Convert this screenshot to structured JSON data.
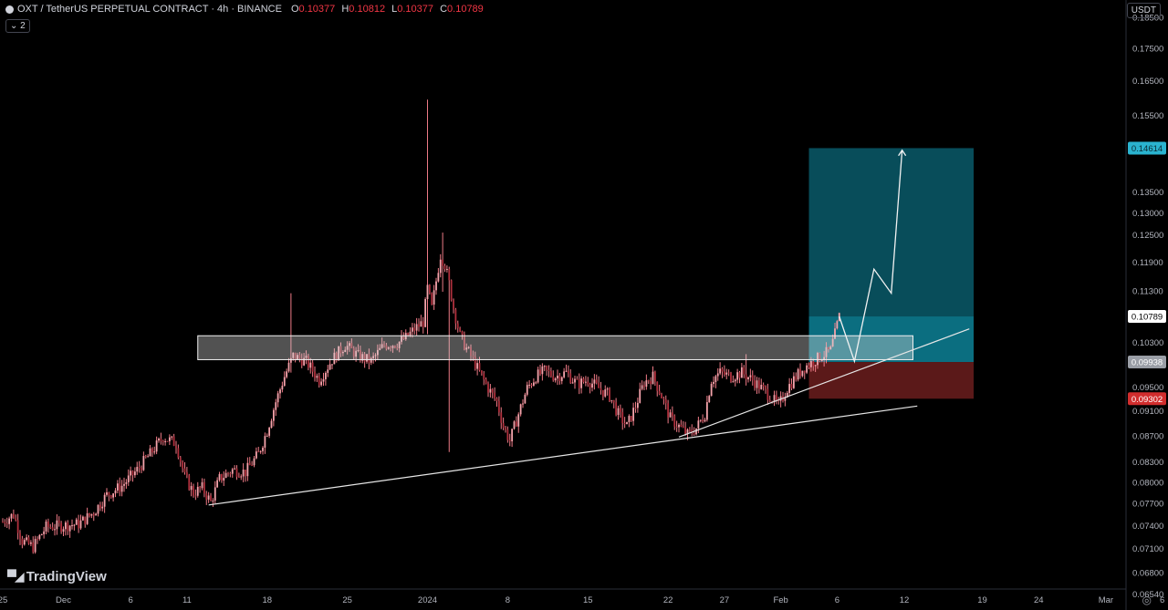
{
  "header": {
    "symbol": "OXT / TetherUS PERPETUAL CONTRACT · 4h · BINANCE",
    "open_label": "O",
    "open": "0.10377",
    "high_label": "H",
    "high": "0.10812",
    "low_label": "L",
    "low": "0.10377",
    "close_label": "C",
    "close": "0.10789",
    "indicator_count": "2",
    "currency": "USDT"
  },
  "brand": "TradingView",
  "colors": {
    "background": "#000000",
    "candle": "#ee7a86",
    "candle_dark": "#b0303d",
    "profit_zone": "#0b6e80",
    "loss_zone": "#6b1d1d",
    "zone_box": "#d8d8d8",
    "axis_text": "#b2b5be",
    "label_target": "#2ab3cf",
    "label_stop": "#d12d2d",
    "label_price": "#ffffff",
    "label_entry": "#9a9ea6"
  },
  "chart_data": {
    "type": "candlestick",
    "y_scale": "log",
    "ylim": [
      0.0645,
      0.189
    ],
    "y_ticks": [
      "0.18500",
      "0.17500",
      "0.16500",
      "0.15500",
      "0.13500",
      "0.13000",
      "0.12500",
      "0.11900",
      "0.11300",
      "0.10300",
      "0.09500",
      "0.09100",
      "0.08700",
      "0.08300",
      "0.08000",
      "0.07700",
      "0.07400",
      "0.07100",
      "0.06800",
      "0.06540"
    ],
    "x_ticks": [
      {
        "label": "25",
        "idx": 0
      },
      {
        "label": "Dec",
        "idx": 28
      },
      {
        "label": "6",
        "idx": 59
      },
      {
        "label": "11",
        "idx": 85
      },
      {
        "label": "18",
        "idx": 122
      },
      {
        "label": "25",
        "idx": 159
      },
      {
        "label": "2024",
        "idx": 196
      },
      {
        "label": "8",
        "idx": 233
      },
      {
        "label": "15",
        "idx": 270
      },
      {
        "label": "22",
        "idx": 307
      },
      {
        "label": "27",
        "idx": 333
      },
      {
        "label": "Feb",
        "idx": 359
      },
      {
        "label": "6",
        "idx": 385
      },
      {
        "label": "12",
        "idx": 416
      },
      {
        "label": "19",
        "idx": 452
      },
      {
        "label": "24",
        "idx": 478
      },
      {
        "label": "Mar",
        "idx": 509
      },
      {
        "label": "6",
        "idx": 535
      }
    ],
    "price_labels": [
      {
        "label": "0.14614",
        "value": 0.14614,
        "kind": "target"
      },
      {
        "label": "0.10789",
        "value": 0.10789,
        "kind": "price"
      },
      {
        "label": "0.09938",
        "value": 0.09938,
        "kind": "entry"
      },
      {
        "label": "0.09302",
        "value": 0.09302,
        "kind": "stop"
      }
    ],
    "close_path": [
      [
        0,
        0.0745
      ],
      [
        5,
        0.0755
      ],
      [
        9,
        0.072
      ],
      [
        14,
        0.0712
      ],
      [
        20,
        0.0738
      ],
      [
        28,
        0.074
      ],
      [
        35,
        0.0742
      ],
      [
        42,
        0.0758
      ],
      [
        48,
        0.0782
      ],
      [
        55,
        0.0795
      ],
      [
        62,
        0.0818
      ],
      [
        68,
        0.0842
      ],
      [
        74,
        0.0868
      ],
      [
        80,
        0.0858
      ],
      [
        84,
        0.0808
      ],
      [
        88,
        0.0785
      ],
      [
        92,
        0.0792
      ],
      [
        96,
        0.0772
      ],
      [
        100,
        0.0805
      ],
      [
        106,
        0.0818
      ],
      [
        112,
        0.0815
      ],
      [
        118,
        0.0842
      ],
      [
        122,
        0.0878
      ],
      [
        126,
        0.0925
      ],
      [
        130,
        0.0968
      ],
      [
        134,
        0.1005
      ],
      [
        140,
        0.0995
      ],
      [
        146,
        0.0962
      ],
      [
        152,
        0.0998
      ],
      [
        158,
        0.1025
      ],
      [
        164,
        0.1005
      ],
      [
        170,
        0.0995
      ],
      [
        176,
        0.1025
      ],
      [
        182,
        0.1028
      ],
      [
        186,
        0.1038
      ],
      [
        190,
        0.1055
      ],
      [
        194,
        0.1068
      ],
      [
        196,
        0.1135
      ],
      [
        198,
        0.1095
      ],
      [
        202,
        0.1205
      ],
      [
        204,
        0.1185
      ],
      [
        206,
        0.1145
      ],
      [
        208,
        0.1095
      ],
      [
        211,
        0.1042
      ],
      [
        214,
        0.1018
      ],
      [
        217,
        0.0998
      ],
      [
        220,
        0.0975
      ],
      [
        224,
        0.0948
      ],
      [
        228,
        0.0925
      ],
      [
        231,
        0.0885
      ],
      [
        234,
        0.0862
      ],
      [
        238,
        0.0905
      ],
      [
        242,
        0.0948
      ],
      [
        246,
        0.0968
      ],
      [
        250,
        0.0978
      ],
      [
        255,
        0.0968
      ],
      [
        260,
        0.0975
      ],
      [
        265,
        0.0955
      ],
      [
        270,
        0.0962
      ],
      [
        275,
        0.0948
      ],
      [
        280,
        0.0935
      ],
      [
        284,
        0.0905
      ],
      [
        288,
        0.0885
      ],
      [
        292,
        0.0918
      ],
      [
        296,
        0.0958
      ],
      [
        300,
        0.0968
      ],
      [
        304,
        0.0935
      ],
      [
        308,
        0.0898
      ],
      [
        312,
        0.0885
      ],
      [
        316,
        0.0872
      ],
      [
        320,
        0.0882
      ],
      [
        324,
        0.0905
      ],
      [
        327,
        0.0962
      ],
      [
        331,
        0.0975
      ],
      [
        336,
        0.0968
      ],
      [
        341,
        0.0975
      ],
      [
        346,
        0.0962
      ],
      [
        350,
        0.0948
      ],
      [
        354,
        0.0935
      ],
      [
        358,
        0.0918
      ],
      [
        362,
        0.0948
      ],
      [
        366,
        0.0968
      ],
      [
        370,
        0.0985
      ],
      [
        374,
        0.0995
      ],
      [
        378,
        0.1005
      ],
      [
        382,
        0.1015
      ],
      [
        384,
        0.1045
      ],
      [
        386,
        0.1079
      ]
    ],
    "spikes": [
      {
        "idx": 196,
        "high": 0.1595,
        "low": 0.1045
      },
      {
        "idx": 203,
        "high": 0.1255,
        "low": 0.1128
      },
      {
        "idx": 133,
        "high": 0.1125,
        "low": 0.0975
      },
      {
        "idx": 206,
        "high": 0.1075,
        "low": 0.0845
      },
      {
        "idx": 343,
        "high": 0.1008,
        "low": 0.0965
      }
    ],
    "drawings": {
      "resistance_zone": {
        "idx_from": 90,
        "idx_to": 420,
        "y_from": 0.0998,
        "y_to": 0.1042
      },
      "lower_trendline": [
        [
          95,
          0.0768
        ],
        [
          422,
          0.0918
        ]
      ],
      "upper_trendline": [
        [
          312,
          0.0868
        ],
        [
          446,
          0.1055
        ]
      ],
      "long_position": {
        "idx_from": 372,
        "idx_to": 448,
        "target": 0.14614,
        "entry": 0.09938,
        "stop": 0.09302,
        "current": 0.10789
      },
      "projection_path": [
        [
          386,
          0.1079
        ],
        [
          393,
          0.0995
        ],
        [
          402,
          0.1175
        ],
        [
          410,
          0.1125
        ],
        [
          415,
          0.1456
        ]
      ]
    }
  }
}
